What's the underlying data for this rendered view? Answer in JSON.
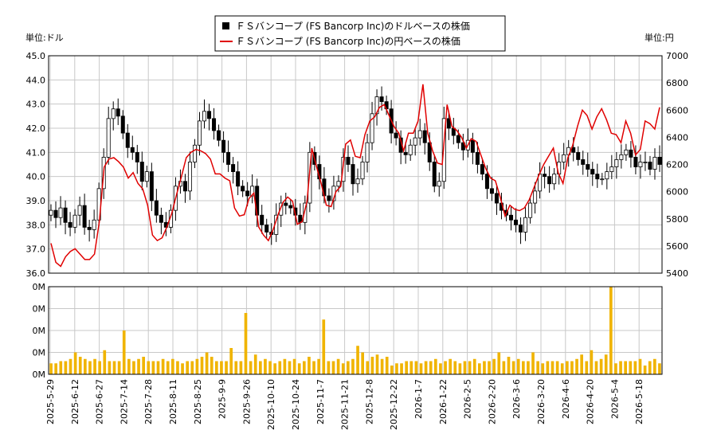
{
  "legend": {
    "usd_label": "ＦＳバンコープ (FS Bancorp Inc)のドルベースの株価",
    "jpy_label": "ＦＳバンコープ (FS Bancorp Inc)の円ベースの株価"
  },
  "units": {
    "left": "単位:ドル",
    "right": "単位:円"
  },
  "colors": {
    "usd": "#000000",
    "jpy": "#e00000",
    "volume": "#f0b400",
    "grid": "#c8c8c8"
  },
  "chart_data": {
    "type": "line",
    "title": "",
    "y_left": {
      "min": 36.0,
      "max": 45.0,
      "ticks": [
        "36.0",
        "37.0",
        "38.0",
        "39.0",
        "40.0",
        "41.0",
        "42.0",
        "43.0",
        "44.0",
        "45.0"
      ]
    },
    "y_right": {
      "min": 5400,
      "max": 7000,
      "ticks": [
        "5400",
        "5600",
        "5800",
        "6000",
        "6200",
        "6400",
        "6600",
        "6800",
        "7000"
      ]
    },
    "y_volume": {
      "ticks": [
        "0M",
        "0M",
        "0M",
        "0M",
        "0M"
      ]
    },
    "x_tick_labels": [
      "2025-5-29",
      "2025-6-12",
      "2025-6-27",
      "2025-7-14",
      "2025-7-28",
      "2025-8-11",
      "2025-8-25",
      "2025-9-9",
      "2025-9-26",
      "2025-10-10",
      "2025-10-24",
      "2025-11-7",
      "2025-11-21",
      "2025-12-8",
      "2025-12-22",
      "2026-1-7",
      "2026-1-22",
      "2026-2-5",
      "2026-2-20",
      "2026-3-6",
      "2026-3-20",
      "2026-4-6",
      "2026-4-20",
      "2026-5-4",
      "2026-5-18"
    ],
    "series": [
      {
        "name": "ＦＳバンコープ (FS Bancorp Inc)のドルベースの株価",
        "axis": "left",
        "style": "candlestick",
        "closes": [
          38.6,
          38.3,
          38.7,
          38.1,
          37.9,
          38.4,
          38.8,
          37.9,
          37.8,
          38.2,
          39.5,
          40.8,
          42.4,
          42.8,
          42.5,
          41.8,
          41.2,
          41.0,
          40.6,
          39.8,
          40.2,
          39.0,
          38.4,
          38.1,
          37.9,
          38.6,
          39.6,
          39.8,
          39.4,
          40.6,
          41.3,
          42.3,
          42.7,
          42.4,
          41.9,
          41.5,
          41.0,
          40.5,
          40.2,
          39.6,
          39.4,
          39.2,
          39.6,
          38.4,
          38.0,
          37.7,
          37.6,
          38.4,
          38.9,
          38.8,
          38.7,
          38.4,
          38.1,
          38.9,
          41.0,
          40.5,
          39.9,
          39.2,
          39.0,
          39.6,
          39.8,
          40.8,
          40.5,
          39.7,
          39.9,
          40.6,
          41.4,
          42.6,
          43.3,
          43.1,
          42.8,
          41.8,
          41.6,
          41.0,
          40.9,
          41.3,
          41.6,
          41.9,
          41.4,
          40.6,
          39.6,
          39.8,
          42.4,
          42.0,
          41.7,
          41.4,
          41.1,
          41.5,
          41.0,
          40.5,
          40.1,
          39.5,
          39.3,
          38.9,
          38.6,
          38.4,
          38.2,
          38.0,
          37.7,
          38.3,
          38.9,
          39.4,
          40.1,
          40.0,
          39.7,
          40.1,
          40.6,
          40.9,
          41.2,
          41.0,
          40.7,
          40.5,
          40.3,
          40.1,
          39.9,
          39.9,
          40.2,
          40.4,
          40.7,
          40.9,
          41.1,
          40.8,
          40.4,
          40.6,
          40.6,
          40.3,
          40.8,
          40.5
        ],
        "volumes": [
          5,
          5,
          6,
          6,
          7,
          10,
          8,
          7,
          6,
          7,
          6,
          11,
          6,
          6,
          6,
          20,
          7,
          6,
          7,
          8,
          6,
          6,
          6,
          7,
          6,
          7,
          6,
          5,
          6,
          6,
          7,
          8,
          10,
          8,
          6,
          6,
          6,
          12,
          6,
          6,
          28,
          6,
          9,
          6,
          7,
          6,
          5,
          6,
          7,
          6,
          7,
          5,
          6,
          8,
          6,
          7,
          25,
          6,
          6,
          7,
          5,
          6,
          7,
          13,
          10,
          6,
          8,
          9,
          7,
          8,
          4,
          5,
          5,
          6,
          6,
          6,
          5,
          6,
          6,
          7,
          5,
          6,
          7,
          6,
          5,
          6,
          6,
          7,
          5,
          6,
          6,
          7,
          10,
          6,
          8,
          6,
          7,
          6,
          6,
          10,
          6,
          5,
          6,
          6,
          6,
          5,
          6,
          6,
          7,
          9,
          6,
          11,
          6,
          7,
          9,
          40,
          5,
          6,
          6,
          6,
          6,
          7,
          4,
          6,
          7,
          5
        ]
      },
      {
        "name": "ＦＳバンコープ (FS Bancorp Inc)の円ベースの株価",
        "axis": "right",
        "style": "line",
        "values": [
          5620,
          5480,
          5450,
          5520,
          5560,
          5580,
          5540,
          5500,
          5500,
          5540,
          5780,
          6180,
          6240,
          6250,
          6220,
          6180,
          6100,
          6140,
          6060,
          6020,
          5900,
          5680,
          5640,
          5660,
          5740,
          5840,
          5980,
          6110,
          6250,
          6290,
          6310,
          6300,
          6280,
          6240,
          6130,
          6130,
          6100,
          6080,
          5880,
          5820,
          5830,
          5950,
          5990,
          5740,
          5680,
          5640,
          5720,
          5830,
          5920,
          5960,
          5930,
          5760,
          5780,
          5930,
          6320,
          6180,
          6050,
          5900,
          5890,
          6000,
          6040,
          6350,
          6380,
          6260,
          6250,
          6420,
          6520,
          6550,
          6620,
          6640,
          6560,
          6480,
          6430,
          6300,
          6430,
          6430,
          6520,
          6790,
          6430,
          6300,
          6210,
          6200,
          6640,
          6480,
          6450,
          6400,
          6320,
          6390,
          6370,
          6270,
          6170,
          6100,
          6080,
          5960,
          5820,
          5900,
          5870,
          5860,
          5880,
          5940,
          6030,
          6120,
          6200,
          6260,
          6320,
          6140,
          6060,
          6250,
          6340,
          6480,
          6600,
          6560,
          6460,
          6550,
          6610,
          6530,
          6430,
          6420,
          6360,
          6520,
          6430,
          6270,
          6310,
          6520,
          6500,
          6460,
          6620
        ]
      }
    ]
  }
}
